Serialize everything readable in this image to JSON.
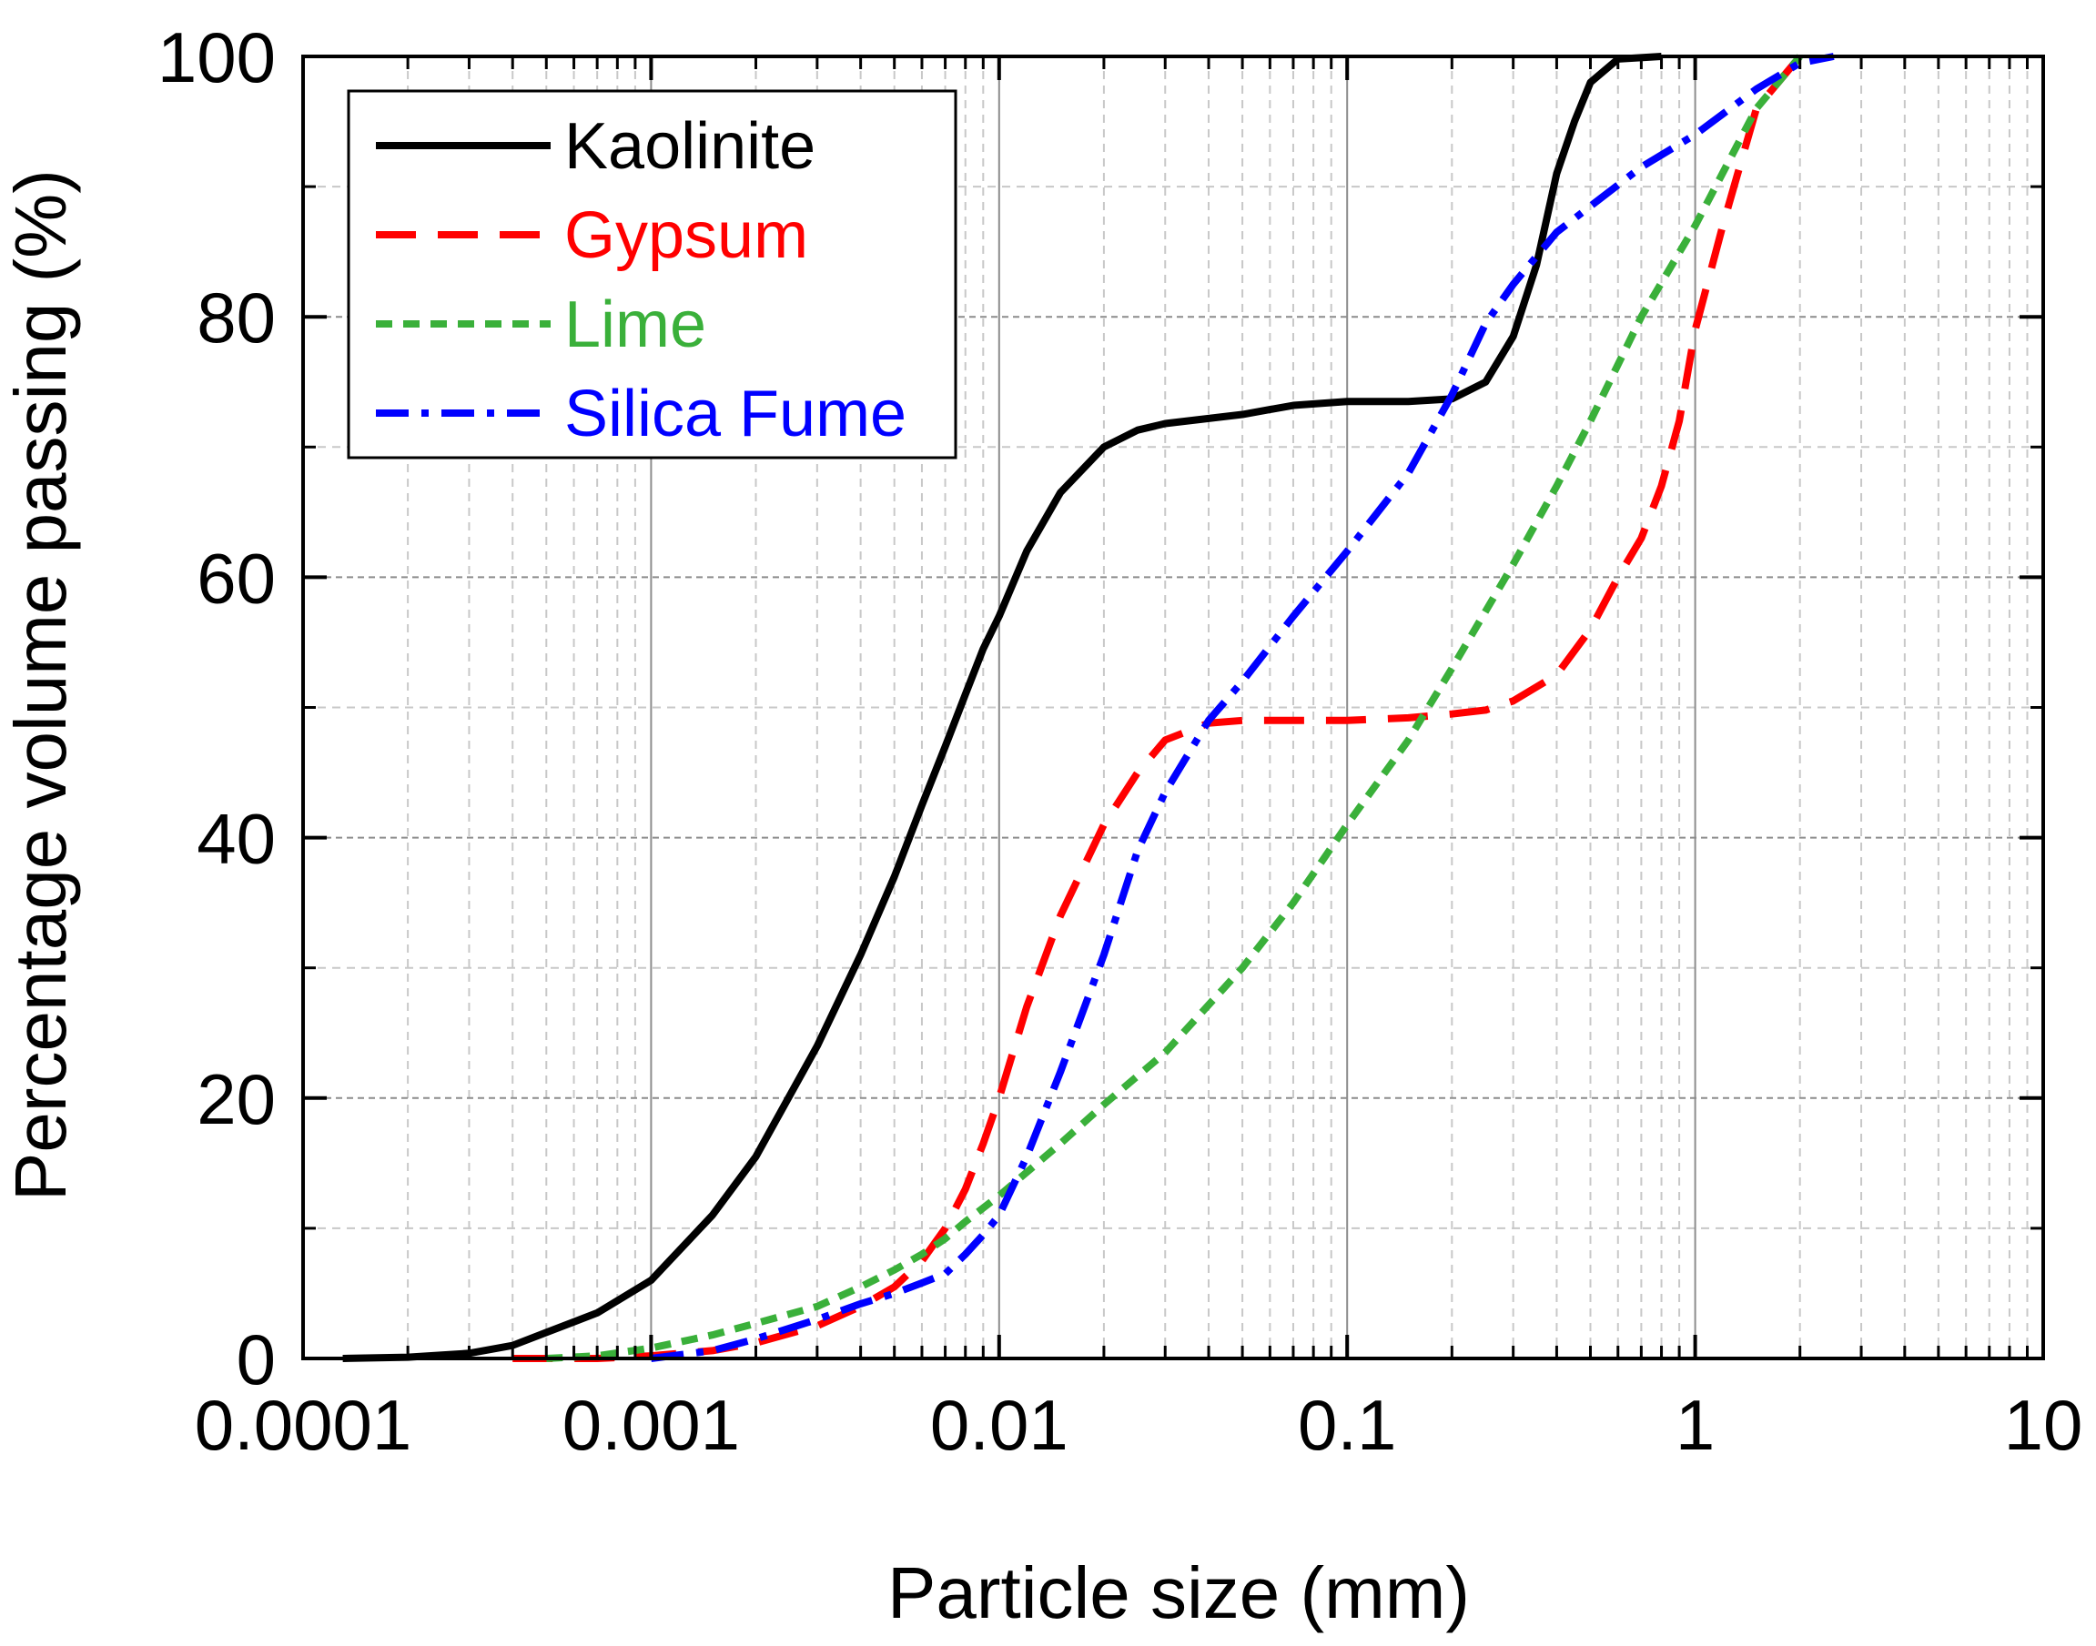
{
  "chart_data": {
    "type": "line",
    "title": "",
    "xlabel": "Particle size (mm)",
    "ylabel": "Percentage volume passing (%)",
    "xscale": "log",
    "xlim": [
      0.0001,
      10
    ],
    "ylim": [
      0,
      100
    ],
    "xticks": [
      0.0001,
      0.001,
      0.01,
      0.1,
      1,
      10
    ],
    "xtick_labels": [
      "0.0001",
      "0.001",
      "0.01",
      "0.1",
      "1",
      "10"
    ],
    "yticks": [
      0,
      20,
      40,
      60,
      80,
      100
    ],
    "ytick_labels": [
      "0",
      "20",
      "40",
      "60",
      "80",
      "100"
    ],
    "grid": true,
    "legend_position": "top-left",
    "series": [
      {
        "name": "Kaolinite",
        "color": "#000000",
        "dash": "solid",
        "x": [
          0.00013,
          0.0002,
          0.0003,
          0.0004,
          0.0005,
          0.0007,
          0.001,
          0.0015,
          0.002,
          0.003,
          0.004,
          0.005,
          0.006,
          0.007,
          0.008,
          0.009,
          0.01,
          0.012,
          0.015,
          0.02,
          0.025,
          0.03,
          0.05,
          0.07,
          0.1,
          0.15,
          0.2,
          0.25,
          0.3,
          0.35,
          0.4,
          0.45,
          0.5,
          0.6,
          0.8
        ],
        "y": [
          0,
          0.1,
          0.4,
          1,
          2,
          3.5,
          6,
          11,
          15.5,
          24,
          31,
          37,
          42.5,
          47,
          51,
          54.5,
          57,
          62,
          66.5,
          70,
          71.3,
          71.8,
          72.5,
          73.2,
          73.5,
          73.5,
          73.7,
          75,
          78.5,
          84,
          91,
          95,
          98,
          99.8,
          100
        ]
      },
      {
        "name": "Gypsum",
        "color": "#ff0000",
        "dash": "long-dash",
        "x": [
          0.0004,
          0.0007,
          0.001,
          0.0015,
          0.002,
          0.003,
          0.004,
          0.005,
          0.006,
          0.007,
          0.008,
          0.009,
          0.01,
          0.012,
          0.015,
          0.02,
          0.025,
          0.03,
          0.04,
          0.05,
          0.07,
          0.1,
          0.15,
          0.2,
          0.25,
          0.3,
          0.4,
          0.5,
          0.6,
          0.7,
          0.8,
          0.9,
          1,
          1.2,
          1.5,
          2
        ],
        "y": [
          0,
          0,
          0.2,
          0.6,
          1.2,
          2.5,
          4,
          5.5,
          7.5,
          10,
          13,
          16.5,
          20,
          27,
          34,
          41,
          45,
          47.5,
          48.8,
          49,
          49,
          49,
          49.2,
          49.5,
          49.8,
          50.5,
          52.5,
          56,
          60,
          63,
          67,
          72,
          79,
          87,
          96,
          100
        ]
      },
      {
        "name": "Lime",
        "color": "#3ab03a",
        "dash": "short-dash",
        "x": [
          0.0005,
          0.0007,
          0.001,
          0.0015,
          0.002,
          0.003,
          0.004,
          0.005,
          0.006,
          0.007,
          0.008,
          0.01,
          0.015,
          0.02,
          0.03,
          0.05,
          0.07,
          0.1,
          0.15,
          0.2,
          0.3,
          0.4,
          0.5,
          0.7,
          1,
          1.5,
          2
        ],
        "y": [
          0,
          0.2,
          0.8,
          1.8,
          2.7,
          4,
          5.5,
          6.8,
          8,
          9.2,
          10.5,
          12.5,
          16.5,
          19.5,
          23.5,
          30,
          35,
          41,
          47.5,
          53,
          61,
          67,
          72,
          80,
          87,
          96,
          100
        ]
      },
      {
        "name": "Silica Fume",
        "color": "#0000ff",
        "dash": "dash-dot",
        "x": [
          0.001,
          0.0015,
          0.002,
          0.003,
          0.004,
          0.005,
          0.006,
          0.007,
          0.008,
          0.009,
          0.01,
          0.012,
          0.015,
          0.02,
          0.025,
          0.03,
          0.04,
          0.05,
          0.07,
          0.1,
          0.15,
          0.2,
          0.25,
          0.3,
          0.4,
          0.5,
          0.7,
          1,
          1.5,
          2,
          2.5
        ],
        "y": [
          0,
          0.6,
          1.5,
          3,
          4.2,
          5,
          5.8,
          6.5,
          8,
          9.5,
          11,
          15.5,
          22,
          31,
          39,
          43.5,
          49,
          52,
          57,
          62,
          68,
          74,
          79.5,
          82.5,
          86.5,
          88.5,
          91.5,
          94,
          97.5,
          99.5,
          100
        ]
      }
    ]
  }
}
